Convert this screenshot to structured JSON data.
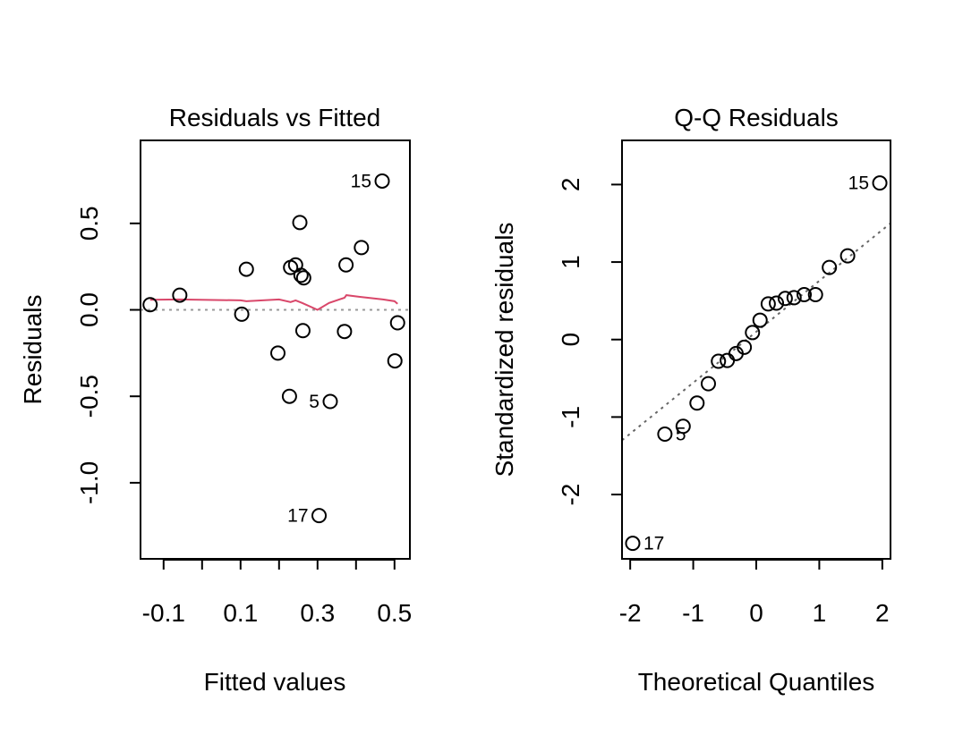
{
  "chart_data": [
    {
      "type": "scatter",
      "title": "Residuals vs Fitted",
      "xlabel": "Fitted values",
      "ylabel": "Residuals",
      "xlim": [
        -0.16,
        0.54
      ],
      "ylim": [
        -1.44,
        0.98
      ],
      "xticks": [
        -0.1,
        0.0,
        0.1,
        0.2,
        0.3,
        0.4,
        0.5
      ],
      "xtick_labels": [
        "-0.1",
        "",
        "0.1",
        "",
        "0.3",
        "",
        "0.5"
      ],
      "yticks": [
        -1.0,
        -0.5,
        0.0,
        0.5
      ],
      "ytick_labels": [
        "-1.0",
        "-0.5",
        "0.0",
        "0.5"
      ],
      "reference_line": {
        "y": 0,
        "color": "#999999",
        "style": "dotted"
      },
      "smooth_color": "#d9476a",
      "points": [
        {
          "x": -0.135,
          "y": 0.03,
          "label": ""
        },
        {
          "x": -0.058,
          "y": 0.085,
          "label": ""
        },
        {
          "x": 0.103,
          "y": -0.025,
          "label": ""
        },
        {
          "x": 0.115,
          "y": 0.235,
          "label": ""
        },
        {
          "x": 0.197,
          "y": -0.25,
          "label": ""
        },
        {
          "x": 0.227,
          "y": -0.5,
          "label": ""
        },
        {
          "x": 0.23,
          "y": 0.245,
          "label": ""
        },
        {
          "x": 0.243,
          "y": 0.26,
          "label": ""
        },
        {
          "x": 0.254,
          "y": 0.505,
          "label": ""
        },
        {
          "x": 0.257,
          "y": 0.2,
          "label": ""
        },
        {
          "x": 0.264,
          "y": 0.185,
          "label": ""
        },
        {
          "x": 0.262,
          "y": -0.12,
          "label": ""
        },
        {
          "x": 0.304,
          "y": -1.19,
          "label": "17"
        },
        {
          "x": 0.333,
          "y": -0.53,
          "label": "5"
        },
        {
          "x": 0.37,
          "y": -0.125,
          "label": ""
        },
        {
          "x": 0.374,
          "y": 0.26,
          "label": ""
        },
        {
          "x": 0.414,
          "y": 0.36,
          "label": ""
        },
        {
          "x": 0.468,
          "y": 0.745,
          "label": "15"
        },
        {
          "x": 0.501,
          "y": -0.295,
          "label": ""
        },
        {
          "x": 0.508,
          "y": -0.075,
          "label": ""
        }
      ],
      "smooth": {
        "x": [
          -0.135,
          -0.06,
          0.1,
          0.115,
          0.2,
          0.23,
          0.243,
          0.26,
          0.3,
          0.33,
          0.37,
          0.375,
          0.41,
          0.47,
          0.5,
          0.508
        ],
        "y": [
          0.058,
          0.06,
          0.055,
          0.05,
          0.06,
          0.045,
          0.055,
          0.04,
          0.0,
          0.04,
          0.07,
          0.085,
          0.075,
          0.06,
          0.05,
          0.035
        ]
      }
    },
    {
      "type": "scatter",
      "title": "Q-Q Residuals",
      "xlabel": "Theoretical Quantiles",
      "ylabel": "Standardized residuals",
      "xlim": [
        -2.13,
        2.13
      ],
      "ylim": [
        -2.83,
        2.57
      ],
      "xticks": [
        -2,
        -1,
        0,
        1,
        2
      ],
      "xtick_labels": [
        "-2",
        "-1",
        "0",
        "1",
        "2"
      ],
      "yticks": [
        -2,
        -1,
        0,
        1,
        2
      ],
      "ytick_labels": [
        "-2",
        "-1",
        "0",
        "1",
        "2"
      ],
      "reference_line": {
        "x1": -2.13,
        "y1": -1.3,
        "x2": 2.13,
        "y2": 1.5,
        "color": "#666666",
        "style": "dotted"
      },
      "points": [
        {
          "x": -1.96,
          "y": -2.63,
          "label": "17"
        },
        {
          "x": -1.45,
          "y": -1.22,
          "label": "5"
        },
        {
          "x": -1.16,
          "y": -1.12,
          "label": ""
        },
        {
          "x": -0.94,
          "y": -0.82,
          "label": ""
        },
        {
          "x": -0.76,
          "y": -0.57,
          "label": ""
        },
        {
          "x": -0.6,
          "y": -0.28,
          "label": ""
        },
        {
          "x": -0.46,
          "y": -0.27,
          "label": ""
        },
        {
          "x": -0.32,
          "y": -0.18,
          "label": ""
        },
        {
          "x": -0.19,
          "y": -0.1,
          "label": ""
        },
        {
          "x": -0.06,
          "y": 0.09,
          "label": ""
        },
        {
          "x": 0.06,
          "y": 0.25,
          "label": ""
        },
        {
          "x": 0.19,
          "y": 0.46,
          "label": ""
        },
        {
          "x": 0.32,
          "y": 0.47,
          "label": ""
        },
        {
          "x": 0.46,
          "y": 0.53,
          "label": ""
        },
        {
          "x": 0.6,
          "y": 0.54,
          "label": ""
        },
        {
          "x": 0.76,
          "y": 0.58,
          "label": ""
        },
        {
          "x": 0.94,
          "y": 0.58,
          "label": ""
        },
        {
          "x": 1.16,
          "y": 0.93,
          "label": ""
        },
        {
          "x": 1.45,
          "y": 1.08,
          "label": ""
        },
        {
          "x": 1.96,
          "y": 2.02,
          "label": "15"
        }
      ]
    }
  ]
}
